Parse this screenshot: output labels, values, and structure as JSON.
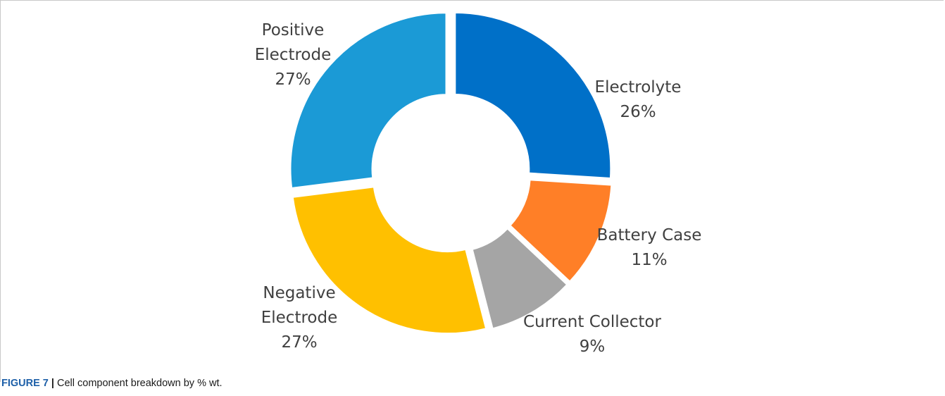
{
  "chart_data": {
    "type": "pie",
    "donut": true,
    "slices": [
      {
        "label": "Electrolyte",
        "value": 26,
        "value_label": "26%",
        "color": "#0070c8"
      },
      {
        "label": "Battery Case",
        "value": 11,
        "value_label": "11%",
        "color": "#ff7f27"
      },
      {
        "label": "Current Collector",
        "value": 9,
        "value_label": "9%",
        "color": "#a5a5a5"
      },
      {
        "label": "Negative Electrode",
        "value": 27,
        "value_label": "27%",
        "color": "#ffc000"
      },
      {
        "label": "Positive Electrode",
        "value": 27,
        "value_label": "27%",
        "color": "#1b9ad6"
      }
    ]
  },
  "caption": {
    "label": "FIGURE 7",
    "separator": "|",
    "text": "Cell component breakdown by % wt."
  }
}
